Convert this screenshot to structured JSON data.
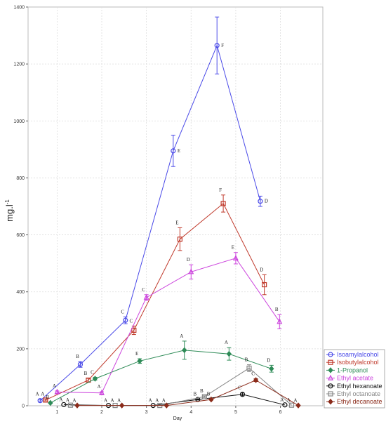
{
  "chart_data": {
    "type": "line",
    "xlabel": "Day",
    "ylabel": "mg.l",
    "ylabel_sup": "-1",
    "xlim": [
      0.35,
      6.95
    ],
    "ylim": [
      0,
      1400
    ],
    "xticks": [
      1,
      2,
      3,
      4,
      5,
      6
    ],
    "yticks": [
      0,
      200,
      400,
      600,
      800,
      1000,
      1200,
      1400
    ],
    "grid": true,
    "legend_position": "bottom-right",
    "series": [
      {
        "name": "Isoamylalcohol",
        "color": "#4a4ae8",
        "marker": "circle",
        "x": [
          0.62,
          1.52,
          2.53,
          3.6,
          4.58,
          5.55
        ],
        "y": [
          18,
          145,
          300,
          895,
          1265,
          718
        ],
        "err": [
          5,
          10,
          12,
          55,
          100,
          18
        ],
        "labels": [
          "A",
          "B",
          "C",
          "E",
          "F",
          "D"
        ]
      },
      {
        "name": "Isobutylalcohol",
        "color": "#c0392b",
        "marker": "square",
        "x": [
          0.74,
          1.7,
          2.72,
          3.75,
          4.72,
          5.64
        ],
        "y": [
          20,
          90,
          265,
          585,
          710,
          425
        ],
        "err": [
          3,
          6,
          15,
          40,
          30,
          35
        ],
        "labels": [
          "A",
          "B",
          "C",
          "E",
          "F",
          "D"
        ]
      },
      {
        "name": "1-Propanol",
        "color": "#2e8b57",
        "marker": "diamond",
        "x": [
          0.85,
          1.85,
          2.85,
          3.85,
          4.85,
          5.8
        ],
        "y": [
          10,
          95,
          157,
          195,
          182,
          130
        ],
        "err": [
          2,
          5,
          8,
          32,
          22,
          12
        ],
        "labels": [
          "B",
          "C",
          "E",
          "A",
          "A",
          "D"
        ]
      },
      {
        "name": "Ethyl acetate",
        "color": "#cc44dd",
        "marker": "triangle",
        "x": [
          1.0,
          2.0,
          3.0,
          4.0,
          5.0,
          5.98
        ],
        "y": [
          48,
          45,
          380,
          470,
          518,
          295
        ],
        "err": [
          4,
          4,
          10,
          25,
          20,
          25
        ],
        "labels": [
          "A",
          "A",
          "C",
          "D",
          "E",
          "B"
        ]
      },
      {
        "name": "Ethyl hexanoate",
        "color": "#111111",
        "marker": "circle",
        "x": [
          1.15,
          2.15,
          3.15,
          4.15,
          5.15,
          6.1
        ],
        "y": [
          4,
          1,
          1,
          22,
          40,
          3
        ],
        "err": [
          0,
          0,
          0,
          2,
          5,
          0
        ],
        "labels": [
          "A",
          "A",
          "A",
          "B",
          "C",
          "A"
        ]
      },
      {
        "name": "Ethyl octanoate",
        "color": "#888888",
        "marker": "square",
        "x": [
          1.3,
          2.3,
          3.3,
          4.3,
          5.3,
          6.25
        ],
        "y": [
          2,
          1,
          1,
          32,
          132,
          2
        ],
        "err": [
          0,
          0,
          0,
          3,
          12,
          0
        ],
        "labels": [
          "A",
          "A",
          "A",
          "B",
          "B",
          "A"
        ]
      },
      {
        "name": "Ethyl decanoate",
        "color": "#8b2b1a",
        "marker": "diamond",
        "x": [
          1.45,
          2.45,
          3.45,
          4.45,
          5.45,
          6.4
        ],
        "y": [
          1,
          1,
          1,
          22,
          90,
          1
        ],
        "err": [
          0,
          0,
          0,
          2,
          5,
          0
        ],
        "labels": [
          "A",
          "A",
          "A",
          "B",
          "C",
          "A"
        ]
      }
    ]
  }
}
